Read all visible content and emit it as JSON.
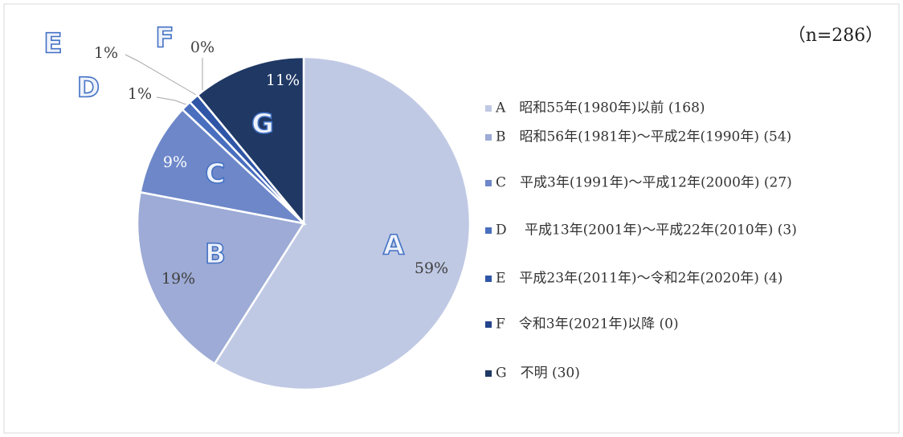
{
  "chart_data": {
    "type": "pie",
    "annotation": "（n=286）",
    "categories": [
      "A　昭和55年(1980年)以前 (168)",
      "B　昭和56年(1981年)～平成2年(1990年) (54)",
      "C　平成3年(1991年)～平成12年(2000年) (27)",
      "D　 平成13年(2001年)～平成22年(2010年) (3)",
      "E　平成23年(2011年)～令和2年(2020年) (4)",
      "F　令和3年(2021年)以降 (0)",
      "G　不明 (30)"
    ],
    "slice_labels": [
      "A",
      "B",
      "C",
      "D",
      "E",
      "F",
      "G"
    ],
    "values": [
      59,
      19,
      9,
      1,
      1,
      0,
      11
    ],
    "value_labels": [
      "59%",
      "19%",
      "9%",
      "1%",
      "1%",
      "0%",
      "11%"
    ],
    "colors": [
      "#c0c9e4",
      "#9dabd6",
      "#6d87c9",
      "#4a6fbf",
      "#2f55a6",
      "#24448c",
      "#1f3864"
    ],
    "legend": "right"
  }
}
